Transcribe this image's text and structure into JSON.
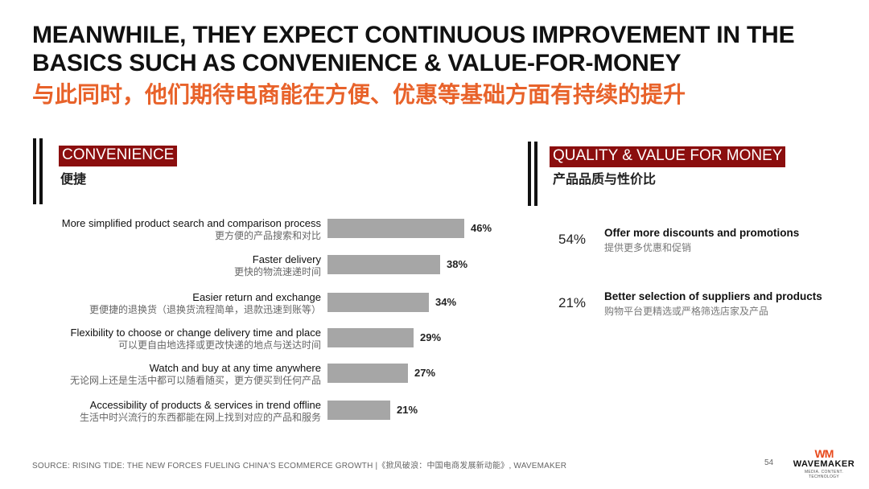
{
  "header": {
    "title_en": "MEANWHILE, THEY EXPECT CONTINUOUS IMPROVEMENT IN THE BASICS SUCH AS CONVENIENCE & VALUE-FOR-MONEY",
    "title_cn": "与此同时，他们期待电商能在方便、优惠等基础方面有持续的提升"
  },
  "colors": {
    "accent_orange": "#e8622a",
    "panel_title_bg": "#8b0e0e",
    "bar": "#a6a6a6"
  },
  "convenience": {
    "title": "CONVENIENCE",
    "subtitle": "便捷"
  },
  "quality": {
    "title": "QUALITY & VALUE FOR MONEY",
    "subtitle": "产品品质与性价比",
    "items": [
      {
        "pct": "54%",
        "en": "Offer more discounts and promotions",
        "cn": "提供更多优惠和促销"
      },
      {
        "pct": "21%",
        "en": "Better selection of suppliers and products",
        "cn": "购物平台更精选或严格筛选店家及产品"
      }
    ]
  },
  "chart_data": {
    "type": "bar",
    "orientation": "horizontal",
    "categories": [
      "More simplified product search and comparison process",
      "Faster delivery",
      "Easier return and exchange",
      "Flexibility to choose or change delivery time and place",
      "Watch and buy at any time anywhere",
      "Accessibility of products & services in trend offline"
    ],
    "categories_cn": [
      "更方便的产品搜索和对比",
      "更快的物流速递时间",
      "更便捷的退换货（退换货流程简单，退款迅速到账等）",
      "可以更自由地选择或更改快递的地点与送达时间",
      "无论网上还是生活中都可以随看随买，更方便买到任何产品",
      "生活中时兴流行的东西都能在网上找到对应的产品和服务"
    ],
    "values": [
      46,
      38,
      34,
      29,
      27,
      21
    ],
    "value_labels": [
      "46%",
      "38%",
      "34%",
      "29%",
      "27%",
      "21%"
    ],
    "xlim": [
      0,
      100
    ]
  },
  "footer": {
    "source": "SOURCE: RISING TIDE: THE NEW FORCES FUELING CHINA'S ECOMMERCE GROWTH |《掀风破浪：中国电商发展新动能》, WAVEMAKER",
    "page": "54",
    "logo_mark": "WM",
    "logo_text": "WAVEMAKER",
    "logo_tag": "MEDIA. CONTENT. TECHNOLOGY"
  }
}
